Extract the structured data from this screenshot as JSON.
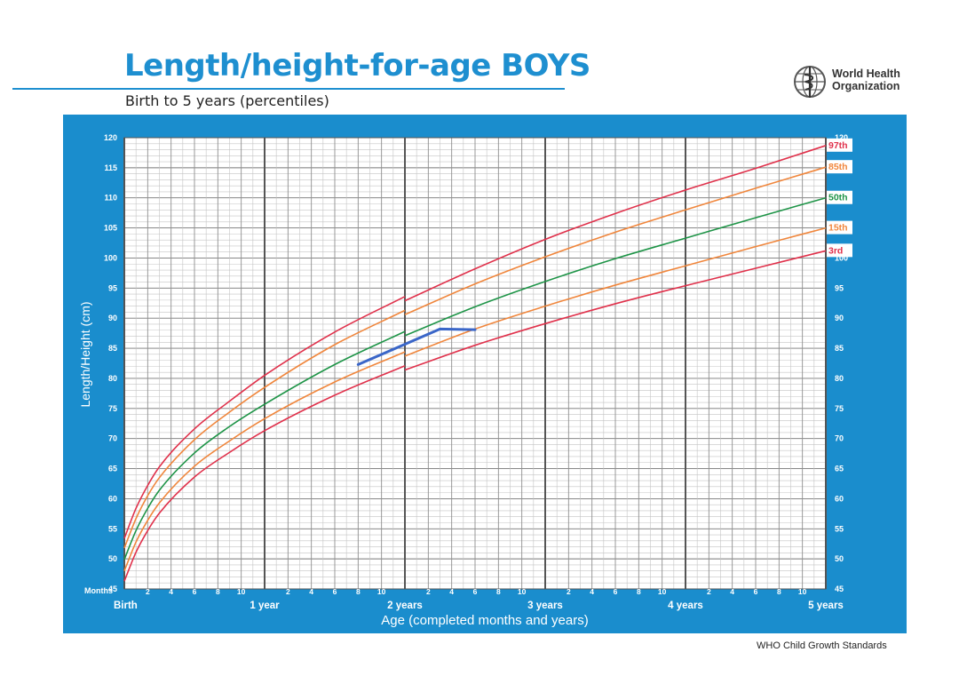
{
  "header": {
    "title": "Length/height-for-age BOYS",
    "subtitle": "Birth to 5 years (percentiles)"
  },
  "logo": {
    "name_line1": "World Health",
    "name_line2": "Organization"
  },
  "footer": "WHO Child Growth Standards",
  "chart_data": {
    "type": "line",
    "ylabel": "Length/Height (cm)",
    "xlabel": "Age (completed months and years)",
    "months_label": "Months",
    "xlim": [
      0,
      60
    ],
    "ylim": [
      45,
      120
    ],
    "y_ticks": [
      45,
      50,
      55,
      60,
      65,
      70,
      75,
      80,
      85,
      90,
      95,
      100,
      105,
      110,
      115,
      120
    ],
    "month_ticks": [
      "2",
      "4",
      "6",
      "8",
      "10"
    ],
    "year_labels": [
      {
        "month": 0,
        "label": "Birth"
      },
      {
        "month": 12,
        "label": "1 year"
      },
      {
        "month": 24,
        "label": "2 years"
      },
      {
        "month": 36,
        "label": "3 years"
      },
      {
        "month": 48,
        "label": "4 years"
      },
      {
        "month": 60,
        "label": "5 years"
      }
    ],
    "series": [
      {
        "name": "97th",
        "color": "#e0314b",
        "x": [
          0,
          1,
          2,
          3,
          6,
          9,
          12,
          18,
          24,
          24,
          30,
          36,
          42,
          48,
          54,
          60
        ],
        "y": [
          53.4,
          58.4,
          62.2,
          65.3,
          71.6,
          76.2,
          80.5,
          87.7,
          93.6,
          92.9,
          98.2,
          103.1,
          107.4,
          111.3,
          114.9,
          118.7
        ]
      },
      {
        "name": "85th",
        "color": "#f0863c",
        "x": [
          0,
          1,
          2,
          3,
          6,
          9,
          12,
          18,
          24,
          24,
          30,
          36,
          42,
          48,
          54,
          60
        ],
        "y": [
          51.8,
          56.7,
          60.5,
          63.5,
          69.8,
          74.4,
          78.5,
          85.6,
          91.3,
          90.6,
          95.7,
          100.2,
          104.3,
          108.0,
          111.6,
          115.1
        ]
      },
      {
        "name": "50th",
        "color": "#1e9447",
        "x": [
          0,
          1,
          2,
          3,
          6,
          9,
          12,
          18,
          24,
          24,
          30,
          36,
          42,
          48,
          54,
          60
        ],
        "y": [
          49.9,
          54.7,
          58.4,
          61.4,
          67.6,
          72.0,
          75.7,
          82.3,
          87.8,
          87.1,
          91.9,
          96.1,
          99.9,
          103.3,
          106.7,
          110.0
        ]
      },
      {
        "name": "15th",
        "color": "#f0863c",
        "x": [
          0,
          1,
          2,
          3,
          6,
          9,
          12,
          18,
          24,
          24,
          30,
          36,
          42,
          48,
          54,
          60
        ],
        "y": [
          48.0,
          52.8,
          56.4,
          59.3,
          65.4,
          69.6,
          73.3,
          79.4,
          84.4,
          83.7,
          88.2,
          92.0,
          95.5,
          98.7,
          101.9,
          105.0
        ]
      },
      {
        "name": "3rd",
        "color": "#e0314b",
        "x": [
          0,
          1,
          2,
          3,
          6,
          9,
          12,
          18,
          24,
          24,
          30,
          36,
          42,
          48,
          54,
          60
        ],
        "y": [
          46.3,
          51.1,
          54.7,
          57.6,
          63.6,
          67.7,
          71.3,
          77.2,
          82.1,
          81.4,
          85.5,
          89.1,
          92.4,
          95.4,
          98.3,
          101.2
        ]
      },
      {
        "color": "#3a66c8",
        "x": [
          20,
          27,
          30
        ],
        "y": [
          82.3,
          88.2,
          88.1
        ]
      }
    ]
  }
}
